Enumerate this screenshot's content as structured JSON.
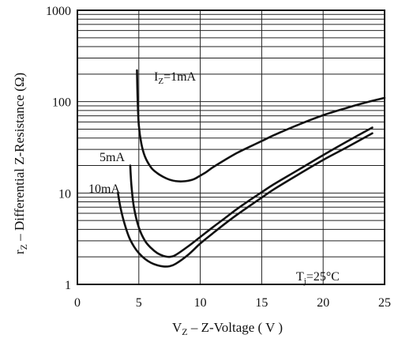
{
  "chart_data": {
    "type": "line",
    "xlabel_main": "V",
    "xlabel_sub": "Z",
    "xlabel_rest": " – Z-Voltage ( V )",
    "ylabel_main": "r",
    "ylabel_sub": "Z",
    "ylabel_rest": " – Differential Z-Resistance (Ω)",
    "x_ticks": [
      "0",
      "5",
      "10",
      "15",
      "20",
      "25"
    ],
    "y_ticks": [
      "1",
      "10",
      "100",
      "1000"
    ],
    "xlim": [
      0,
      25
    ],
    "ylim": [
      1,
      1000
    ],
    "y_scale": "log",
    "grid": true,
    "annotation_main": "T",
    "annotation_sub": "j",
    "annotation_rest": "=25°C",
    "series": [
      {
        "name_main": "I",
        "name_sub": "Z",
        "name_rest": "=1mA",
        "x": [
          4.85,
          4.9,
          5.0,
          5.2,
          5.5,
          6.0,
          6.5,
          7.0,
          7.5,
          8.0,
          8.5,
          9.0,
          9.5,
          10.0,
          10.5,
          11.0,
          12.0,
          13.0,
          14.0,
          15.0,
          16.0,
          18.0,
          20.0,
          22.0,
          23.0,
          24.0,
          25.0
        ],
        "y": [
          220,
          110,
          55,
          35,
          25,
          19,
          16.5,
          15,
          14,
          13.5,
          13.4,
          13.6,
          14.2,
          15.5,
          17,
          19,
          23,
          27.5,
          32,
          37,
          43,
          56,
          71,
          86,
          94,
          102,
          110
        ]
      },
      {
        "name": "5mA",
        "x": [
          4.3,
          4.4,
          4.6,
          5.0,
          5.5,
          6.0,
          6.5,
          7.0,
          7.5,
          8.0,
          9.0,
          10.0,
          11.0,
          12.0,
          13.0,
          14.0,
          15.0,
          16.0,
          18.0,
          20.0,
          22.0,
          24.0
        ],
        "y": [
          20,
          12,
          7,
          4.2,
          3.0,
          2.5,
          2.2,
          2.05,
          2.0,
          2.1,
          2.6,
          3.3,
          4.2,
          5.3,
          6.7,
          8.3,
          10.2,
          12.5,
          18,
          26,
          37,
          52
        ]
      },
      {
        "name": "10mA",
        "x": [
          3.3,
          3.5,
          3.8,
          4.2,
          4.6,
          5.0,
          5.5,
          6.0,
          6.5,
          7.0,
          7.5,
          8.0,
          9.0,
          10.0,
          11.0,
          12.0,
          13.0,
          14.0,
          15.0,
          16.0,
          18.0,
          20.0,
          22.0,
          24.0
        ],
        "y": [
          10,
          7,
          4.8,
          3.3,
          2.6,
          2.2,
          1.9,
          1.72,
          1.62,
          1.57,
          1.58,
          1.68,
          2.1,
          2.8,
          3.6,
          4.6,
          5.8,
          7.2,
          8.9,
          11,
          16,
          23,
          32,
          45
        ]
      }
    ]
  }
}
